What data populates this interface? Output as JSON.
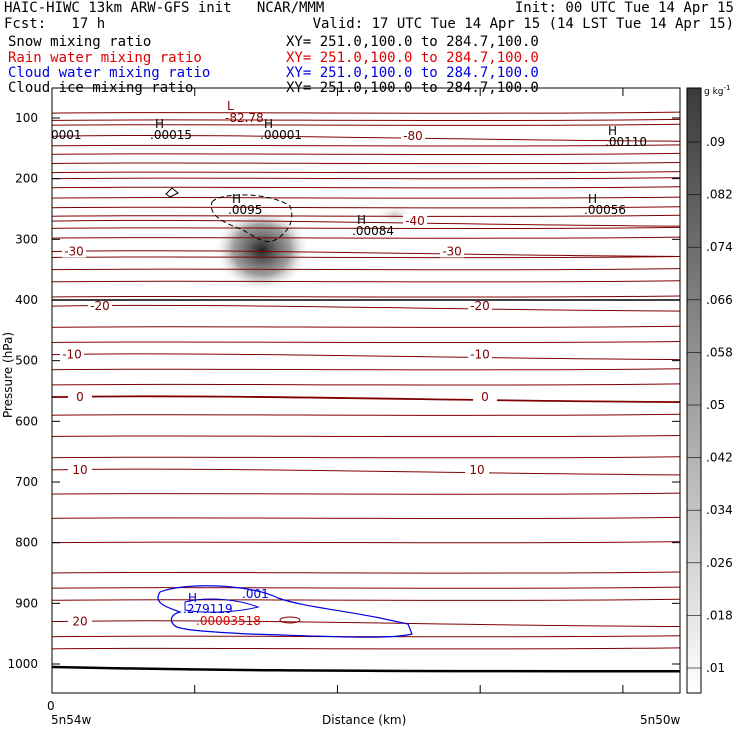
{
  "header": {
    "line1_left": "HAIC-HIWC 13km ARW-GFS init   NCAR/MMM",
    "line1_right": "Init: 00 UTC Tue 14 Apr 15",
    "line2_left": "Fcst:   17 h",
    "line2_right": "Valid: 17 UTC Tue 14 Apr 15 (14 LST Tue 14 Apr 15)"
  },
  "fields": [
    {
      "name": "Snow mixing ratio",
      "xy": "XY= 251.0,100.0 to 284.7,100.0",
      "color": "#000000"
    },
    {
      "name": "Rain water mixing ratio",
      "xy": "XY= 251.0,100.0 to 284.7,100.0",
      "color": "#e00000"
    },
    {
      "name": "Cloud water mixing ratio",
      "xy": "XY= 251.0,100.0 to 284.7,100.0",
      "color": "#0000e0"
    },
    {
      "name": "Cloud ice mixing ratio",
      "xy": "XY= 251.0,100.0 to 284.7,100.0",
      "color": "#000000"
    }
  ],
  "chart_data": {
    "type": "cross-section",
    "ylabel": "Pressure (hPa)",
    "xlabel": "Distance (km)",
    "y_ticks": [
      100,
      200,
      300,
      400,
      500,
      600,
      700,
      800,
      900,
      1000
    ],
    "x_tick_labels": {
      "origin": "0",
      "left_end": "5n54w",
      "right_end": "5n50w"
    },
    "ylim": [
      1050,
      50
    ],
    "temperature_contours": [
      {
        "label": "-80",
        "p": 130
      },
      {
        "label": "-40",
        "p": 270
      },
      {
        "label": "-30",
        "p": 320
      },
      {
        "label": "-20",
        "p": 410
      },
      {
        "label": "-10",
        "p": 490
      },
      {
        "label": "0",
        "p": 560
      },
      {
        "label": "10",
        "p": 680
      },
      {
        "label": "20",
        "p": 930
      }
    ],
    "extrema_labels": [
      {
        "kind": "L",
        "value": "-82.78"
      },
      {
        "kind": "H",
        "value": ".00015"
      },
      {
        "kind": "H",
        "value": ".00001"
      },
      {
        "kind": "H",
        "value": ".00110"
      },
      {
        "kind": "H",
        "value": ".0095"
      },
      {
        "kind": "H",
        "value": ".00084"
      },
      {
        "kind": "H",
        "value": ".00056"
      },
      {
        "kind": "H",
        "value": ".279119"
      },
      {
        "kind": "",
        "value": ".00003518"
      },
      {
        "kind": "",
        "value": ".001"
      },
      {
        "kind": "",
        "value": "0001"
      }
    ],
    "colorbar": {
      "unit": "g kg",
      "unit_exp": "-1",
      "ticks": [
        ".09",
        ".082",
        ".074",
        ".066",
        ".058",
        ".05",
        ".042",
        ".034",
        ".026",
        ".018",
        ".01"
      ]
    }
  }
}
